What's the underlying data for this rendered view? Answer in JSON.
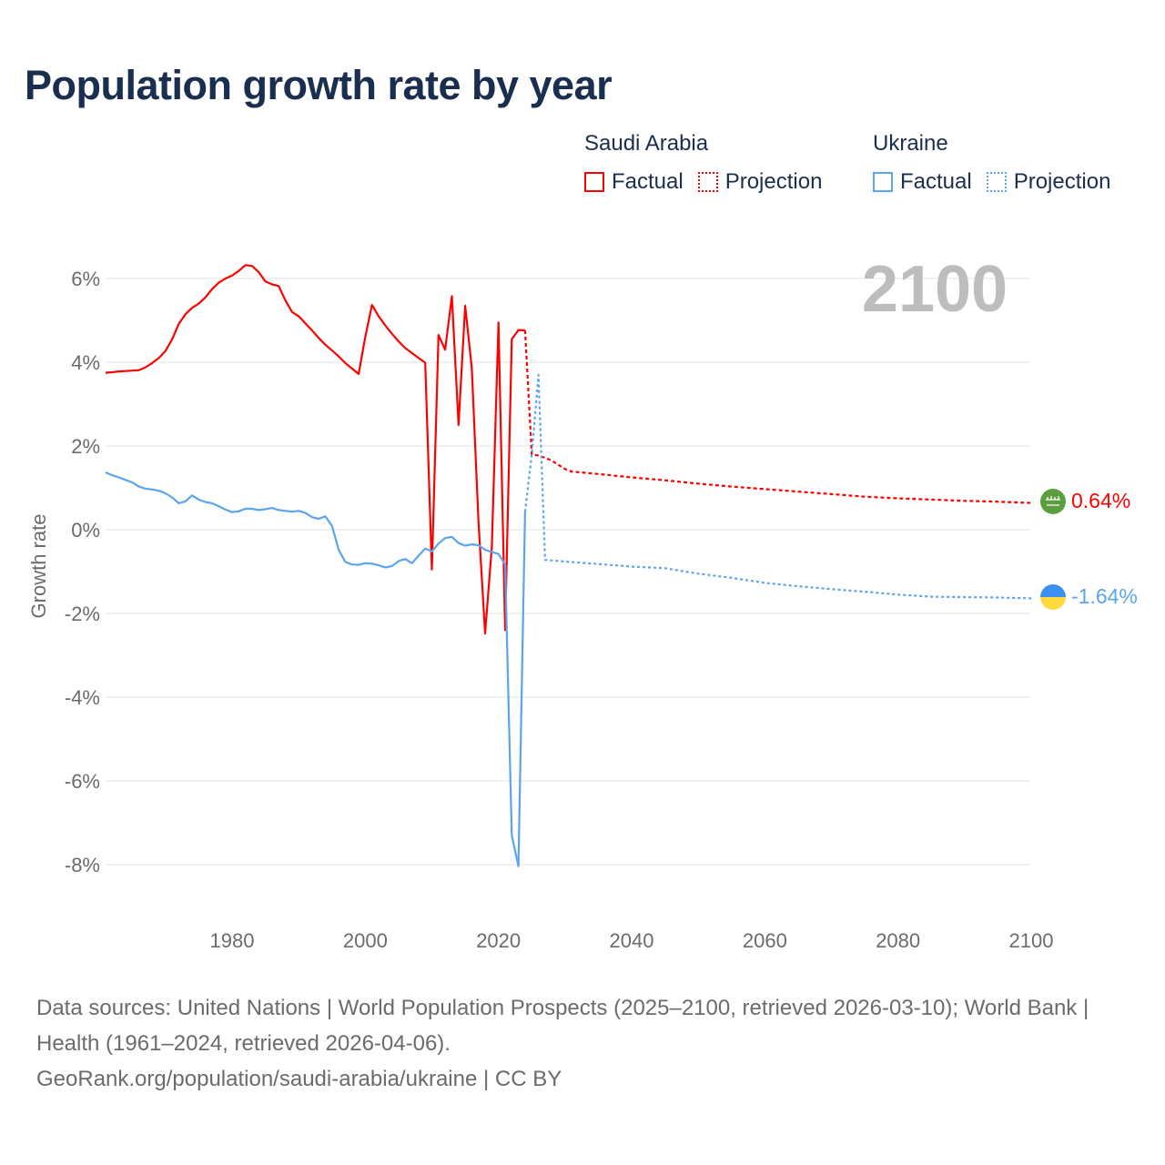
{
  "title": "Population growth rate by year",
  "legend": {
    "groups": [
      {
        "name": "Saudi Arabia",
        "factual": "Factual",
        "projection": "Projection",
        "color": "#ff0000"
      },
      {
        "name": "Ukraine",
        "factual": "Factual",
        "projection": "Projection",
        "color": "#5aa5ee"
      }
    ]
  },
  "year_label": "2100",
  "end_labels": {
    "saudi": "0.64%",
    "ukraine": "-1.64%"
  },
  "footer": {
    "sources": "Data sources: United Nations | World Population Prospects (2025–2100, retrieved 2026-03-10); World Bank | Health (1961–2024, retrieved 2026-04-06).",
    "link": "GeoRank.org/population/saudi-arabia/ukraine | CC BY"
  },
  "chart_data": {
    "type": "line",
    "title": "Population growth rate by year",
    "xlabel": "",
    "ylabel": "Growth rate",
    "xlim": [
      1961,
      2100
    ],
    "ylim": [
      -9,
      6.5
    ],
    "x_ticks": [
      1980,
      2000,
      2020,
      2040,
      2060,
      2080,
      2100
    ],
    "x_tick_labels": [
      "1980",
      "2000",
      "2020",
      "2040",
      "2060",
      "2080",
      "2100"
    ],
    "y_ticks": [
      6,
      4,
      2,
      0,
      -2,
      -4,
      -6,
      -8
    ],
    "y_tick_labels": [
      "6%",
      "4%",
      "2%",
      "0%",
      "-2%",
      "-4%",
      "-6%",
      "-8%"
    ],
    "grid": true,
    "legend_position": "top-right",
    "series": [
      {
        "name": "Saudi Arabia Factual",
        "color": "#ff0000",
        "style": "solid",
        "x": [
          1961,
          1962,
          1963,
          1964,
          1965,
          1966,
          1967,
          1968,
          1969,
          1970,
          1971,
          1972,
          1973,
          1974,
          1975,
          1976,
          1977,
          1978,
          1979,
          1980,
          1981,
          1982,
          1983,
          1984,
          1985,
          1986,
          1987,
          1988,
          1989,
          1990,
          1991,
          1992,
          1993,
          1994,
          1995,
          1996,
          1997,
          1998,
          1999,
          2000,
          2001,
          2002,
          2003,
          2004,
          2005,
          2006,
          2007,
          2008,
          2009,
          2010,
          2011,
          2012,
          2013,
          2014,
          2015,
          2016,
          2017,
          2018,
          2019,
          2020,
          2021,
          2022,
          2023,
          2024
        ],
        "y": [
          3.75,
          3.76,
          3.78,
          3.79,
          3.8,
          3.81,
          3.88,
          3.98,
          4.1,
          4.27,
          4.55,
          4.92,
          5.15,
          5.3,
          5.4,
          5.55,
          5.75,
          5.9,
          6.0,
          6.07,
          6.18,
          6.32,
          6.3,
          6.15,
          5.93,
          5.86,
          5.82,
          5.48,
          5.2,
          5.1,
          4.93,
          4.76,
          4.58,
          4.42,
          4.28,
          4.14,
          3.98,
          3.85,
          3.72,
          4.6,
          5.37,
          5.1,
          4.88,
          4.68,
          4.5,
          4.34,
          4.22,
          4.1,
          3.99,
          -0.95,
          4.65,
          4.3,
          5.58,
          2.5,
          5.35,
          3.85,
          0.2,
          -2.48,
          -0.4,
          4.95,
          -2.4,
          4.55,
          4.77,
          4.76
        ]
      },
      {
        "name": "Saudi Arabia Projection",
        "color": "#ff0000",
        "style": "dashed",
        "x": [
          2024,
          2025,
          2026,
          2027,
          2028,
          2029,
          2030,
          2031,
          2035,
          2040,
          2045,
          2050,
          2055,
          2060,
          2065,
          2070,
          2075,
          2080,
          2085,
          2090,
          2095,
          2100
        ],
        "y": [
          4.76,
          1.8,
          1.77,
          1.72,
          1.65,
          1.55,
          1.45,
          1.39,
          1.33,
          1.25,
          1.18,
          1.1,
          1.03,
          0.97,
          0.91,
          0.85,
          0.79,
          0.75,
          0.72,
          0.69,
          0.67,
          0.64
        ]
      },
      {
        "name": "Ukraine Factual",
        "color": "#5aa5ee",
        "style": "solid",
        "x": [
          1961,
          1962,
          1963,
          1964,
          1965,
          1966,
          1967,
          1968,
          1969,
          1970,
          1971,
          1972,
          1973,
          1974,
          1975,
          1976,
          1977,
          1978,
          1979,
          1980,
          1981,
          1982,
          1983,
          1984,
          1985,
          1986,
          1987,
          1988,
          1989,
          1990,
          1991,
          1992,
          1993,
          1994,
          1995,
          1996,
          1997,
          1998,
          1999,
          2000,
          2001,
          2002,
          2003,
          2004,
          2005,
          2006,
          2007,
          2008,
          2009,
          2010,
          2011,
          2012,
          2013,
          2014,
          2015,
          2016,
          2017,
          2018,
          2019,
          2020,
          2021,
          2022,
          2023,
          2024
        ],
        "y": [
          1.37,
          1.3,
          1.25,
          1.19,
          1.13,
          1.03,
          0.98,
          0.96,
          0.93,
          0.87,
          0.77,
          0.63,
          0.68,
          0.82,
          0.72,
          0.66,
          0.63,
          0.56,
          0.48,
          0.42,
          0.44,
          0.5,
          0.5,
          0.47,
          0.49,
          0.52,
          0.47,
          0.45,
          0.43,
          0.45,
          0.4,
          0.3,
          0.26,
          0.32,
          0.09,
          -0.48,
          -0.77,
          -0.83,
          -0.84,
          -0.8,
          -0.81,
          -0.85,
          -0.9,
          -0.87,
          -0.75,
          -0.7,
          -0.8,
          -0.62,
          -0.45,
          -0.52,
          -0.33,
          -0.2,
          -0.17,
          -0.32,
          -0.38,
          -0.35,
          -0.37,
          -0.48,
          -0.53,
          -0.58,
          -0.83,
          -7.3,
          -8.04,
          0.43
        ]
      },
      {
        "name": "Ukraine Projection",
        "color": "#5aa5ee",
        "style": "dotted",
        "x": [
          2024,
          2025,
          2026,
          2027,
          2030,
          2035,
          2040,
          2045,
          2050,
          2055,
          2060,
          2065,
          2070,
          2075,
          2080,
          2085,
          2090,
          2095,
          2100
        ],
        "y": [
          0.43,
          1.8,
          3.7,
          -0.72,
          -0.76,
          -0.82,
          -0.88,
          -0.92,
          -1.05,
          -1.15,
          -1.27,
          -1.35,
          -1.42,
          -1.48,
          -1.55,
          -1.6,
          -1.61,
          -1.62,
          -1.64
        ]
      }
    ]
  }
}
